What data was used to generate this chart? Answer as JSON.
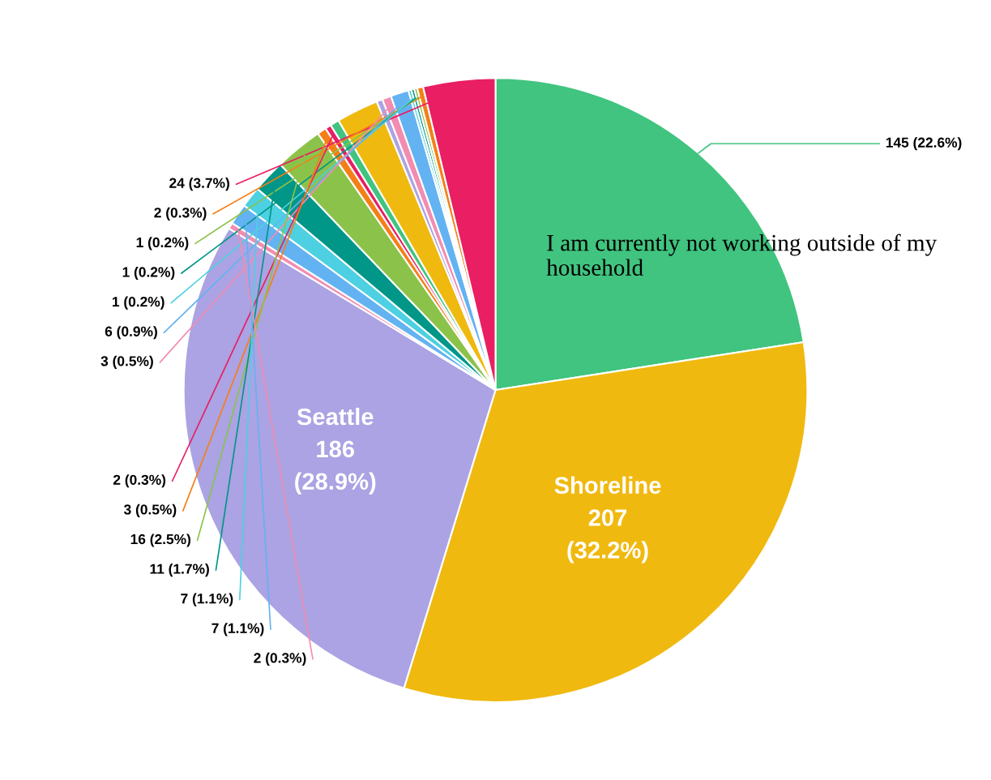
{
  "chart_data": {
    "type": "pie",
    "categories": [
      "I am currently not working outside of my household",
      "Shoreline",
      "Seattle",
      null,
      null,
      null,
      null,
      null,
      null,
      null,
      null,
      null,
      null,
      null,
      null,
      null,
      null,
      null,
      null,
      null
    ],
    "values": [
      145,
      207,
      186,
      2,
      7,
      7,
      11,
      16,
      3,
      2,
      3,
      14,
      2,
      3,
      6,
      1,
      1,
      1,
      2,
      24
    ],
    "value_labels": [
      "145 (22.6%)",
      "207\n(32.2%)",
      "186\n(28.9%)",
      "2 (0.3%)",
      "7 (1.1%)",
      "7 (1.1%)",
      "11 (1.7%)",
      "16 (2.5%)",
      "3 (0.5%)",
      "2 (0.3%)",
      null,
      null,
      null,
      "3 (0.5%)",
      "6 (0.9%)",
      "1 (0.2%)",
      "1 (0.2%)",
      "1 (0.2%)",
      "2 (0.3%)",
      "24 (3.7%)"
    ],
    "colors": [
      "#40c47f",
      "#f0b90f",
      "#aba3e3",
      "#f28cb1",
      "#63b3f2",
      "#4dd0e1",
      "#009688",
      "#8bc34a",
      "#f57f17",
      "#e91e63",
      "#40c47f",
      "#f0b90f",
      "#aba3e3",
      "#f28cb1",
      "#63b3f2",
      "#4dd0e1",
      "#009688",
      "#8bc34a",
      "#f57f17",
      "#e91e63"
    ],
    "legend": false
  }
}
